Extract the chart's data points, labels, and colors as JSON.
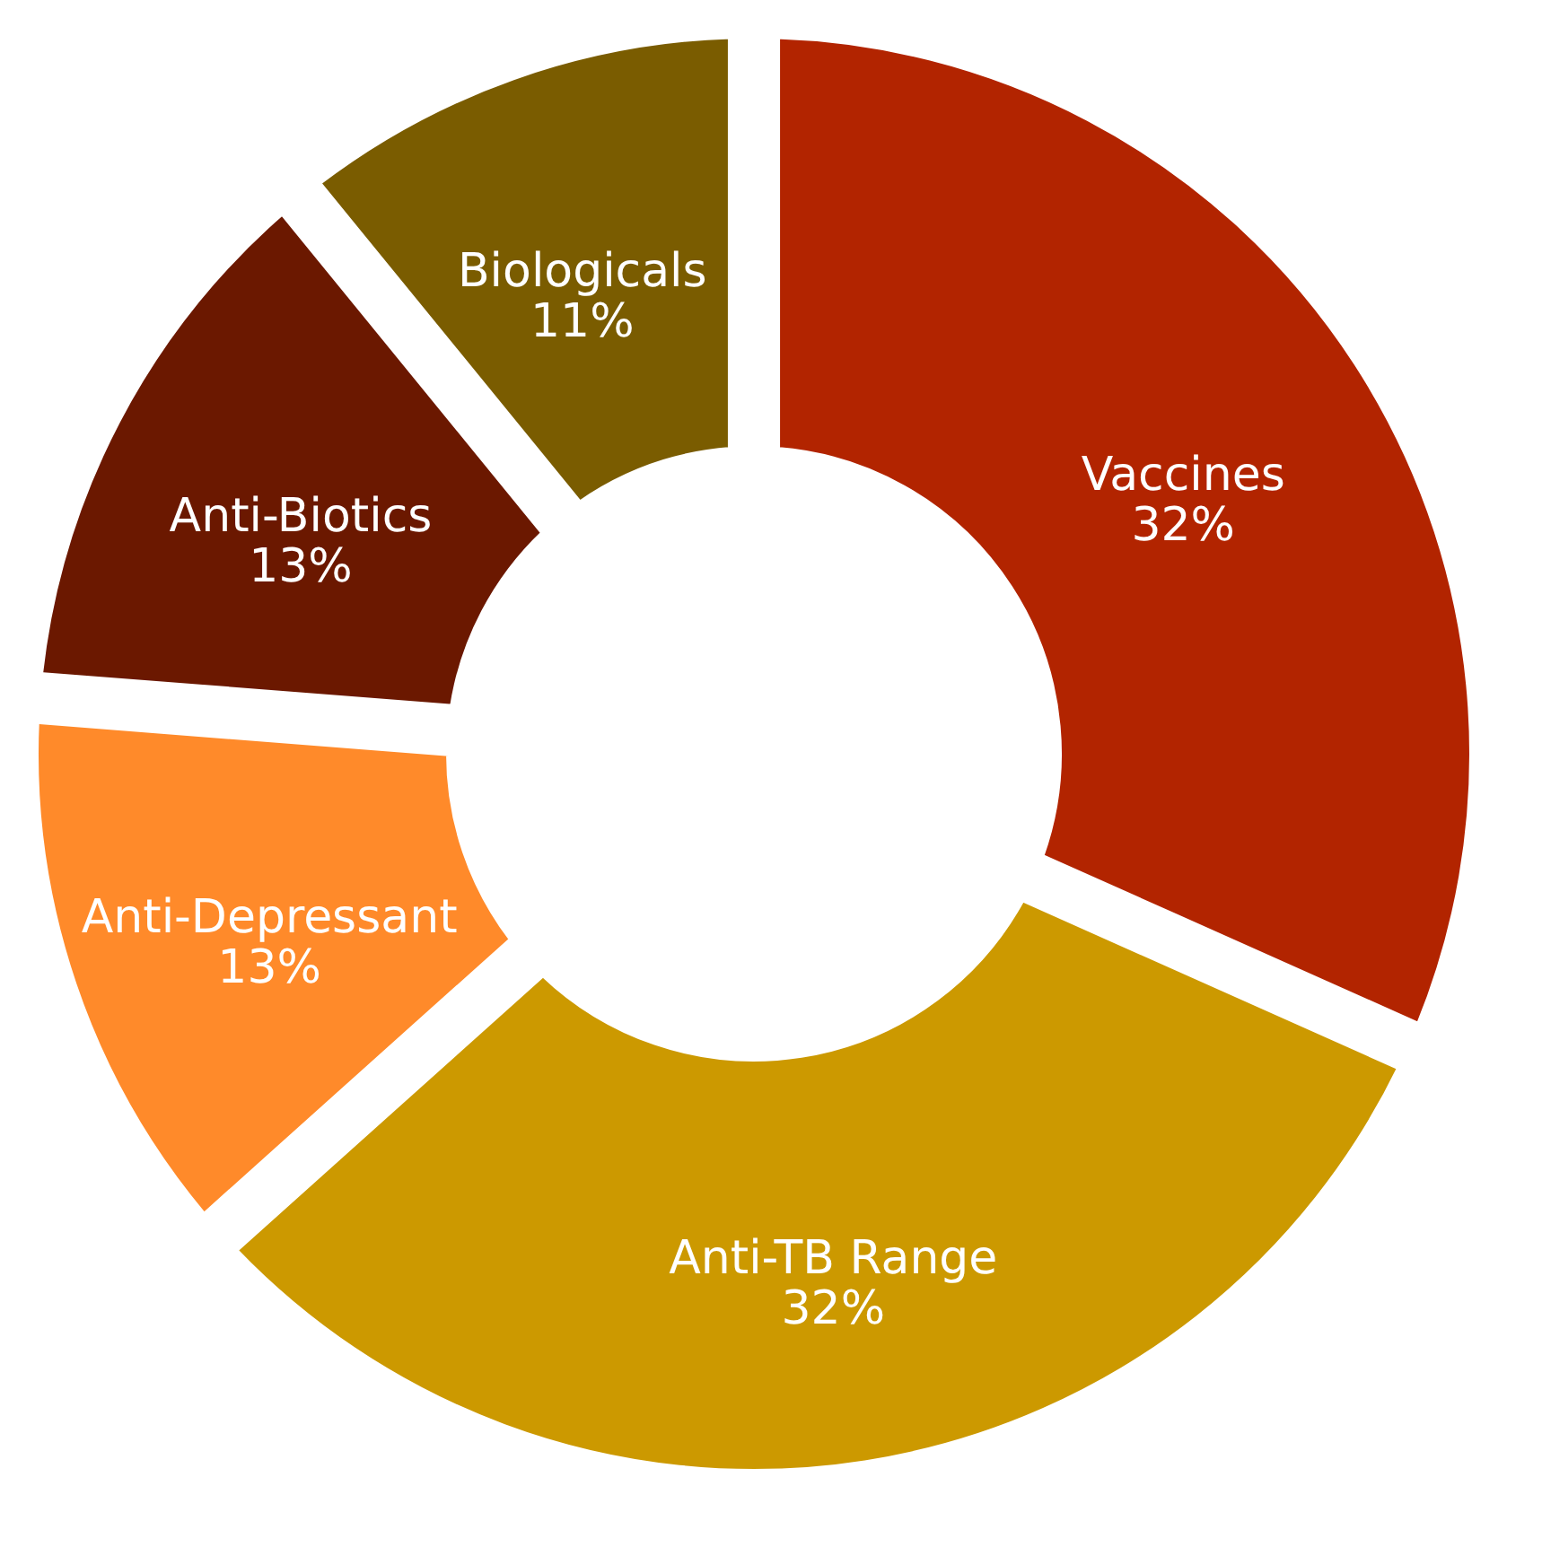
{
  "chart_data": {
    "type": "donut",
    "categories": [
      "Vaccines",
      "Anti-TB Range",
      "Anti-Depressant",
      "Anti-Biotics",
      "Biologicals"
    ],
    "values": [
      32,
      32,
      13,
      13,
      11
    ],
    "colors": [
      "#b22400",
      "#cc9900",
      "#ff8a2a",
      "#6b1800",
      "#7a5c00"
    ],
    "value_labels": [
      "32%",
      "32%",
      "13%",
      "13%",
      "11%"
    ],
    "legend": false
  }
}
